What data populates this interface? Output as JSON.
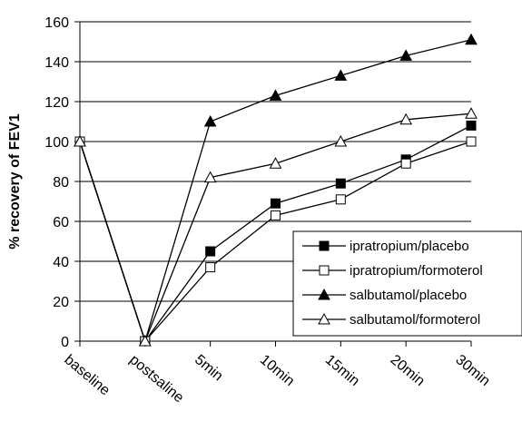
{
  "chart_data": {
    "type": "line",
    "ylabel": "% recovery of FEV1",
    "ylim": [
      0,
      160
    ],
    "yticks": [
      0,
      20,
      40,
      60,
      80,
      100,
      120,
      140,
      160
    ],
    "grid": "horizontal",
    "legend_position": "bottom-right",
    "categories": [
      "baseline",
      "postsaline",
      "5min",
      "10min",
      "15min",
      "20min",
      "30min"
    ],
    "series": [
      {
        "name": "ipratropium/placebo",
        "marker": "filled-square",
        "values": [
          100,
          0,
          45,
          69,
          79,
          91,
          108
        ]
      },
      {
        "name": "ipratropium/formoterol",
        "marker": "open-square",
        "values": [
          100,
          0,
          37,
          63,
          71,
          89,
          100
        ]
      },
      {
        "name": "salbutamol/placebo",
        "marker": "filled-triangle",
        "values": [
          100,
          0,
          110,
          123,
          133,
          143,
          151
        ]
      },
      {
        "name": "salbutamol/formoterol",
        "marker": "open-triangle",
        "values": [
          100,
          0,
          82,
          89,
          100,
          111,
          114
        ]
      }
    ]
  }
}
